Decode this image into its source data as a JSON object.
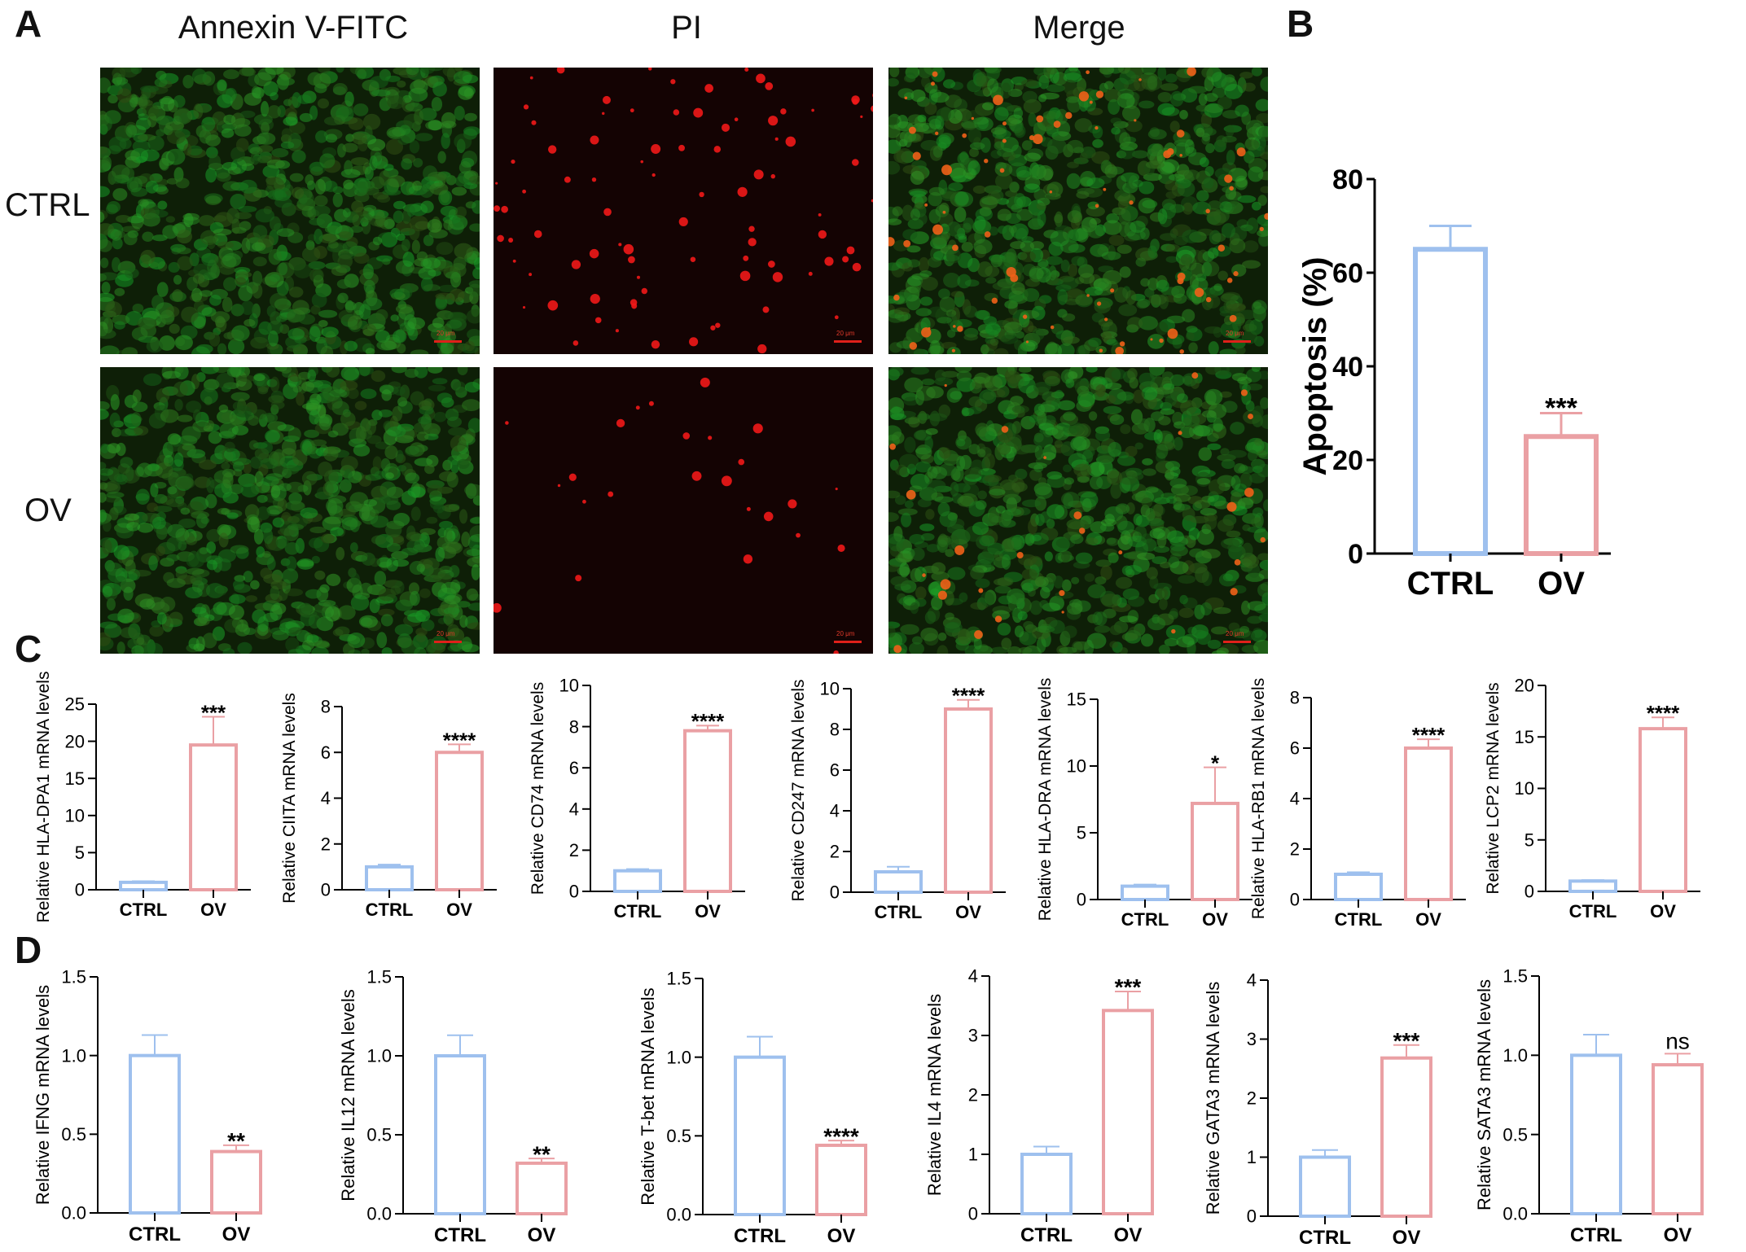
{
  "panels": {
    "A": "A",
    "B": "B",
    "C": "C",
    "D": "D"
  },
  "micrographs": {
    "columns": [
      "Annexin V-FITC",
      "PI",
      "Merge"
    ],
    "rows": [
      "CTRL",
      "OV"
    ],
    "scale_label": "20 μm",
    "colors": {
      "green_stain": "#3a7a1c",
      "red_stain": "#e81818",
      "background": "#0b1a06"
    }
  },
  "chart_data": [
    {
      "id": "B",
      "type": "bar",
      "categories": [
        "CTRL",
        "OV"
      ],
      "values": [
        65,
        25
      ],
      "errors": [
        5,
        5
      ],
      "ylim": [
        0,
        80
      ],
      "yticks": [
        0,
        20,
        40,
        60,
        80
      ],
      "ylabel": "Apoptosis (%)",
      "xlabel": "",
      "significance": "***",
      "colors": [
        "#9ec0ee",
        "#eaa0a4"
      ]
    },
    {
      "id": "C1",
      "type": "bar",
      "categories": [
        "CTRL",
        "OV"
      ],
      "values": [
        1.0,
        19.5
      ],
      "errors": [
        0.15,
        3.8
      ],
      "ylim": [
        0,
        25
      ],
      "yticks": [
        0,
        5,
        10,
        15,
        20,
        25
      ],
      "ylabel": "Relative HLA-DPA1 mRNA levels",
      "significance": "***",
      "colors": [
        "#9ec0ee",
        "#eaa0a4"
      ]
    },
    {
      "id": "C2",
      "type": "bar",
      "categories": [
        "CTRL",
        "OV"
      ],
      "values": [
        1.0,
        6.0
      ],
      "errors": [
        0.1,
        0.35
      ],
      "ylim": [
        0,
        8
      ],
      "yticks": [
        0,
        2,
        4,
        6,
        8
      ],
      "ylabel": "Relative CIITA mRNA levels",
      "significance": "****",
      "colors": [
        "#9ec0ee",
        "#eaa0a4"
      ]
    },
    {
      "id": "C3",
      "type": "bar",
      "categories": [
        "CTRL",
        "OV"
      ],
      "values": [
        1.0,
        7.8
      ],
      "errors": [
        0.08,
        0.25
      ],
      "ylim": [
        0,
        10
      ],
      "yticks": [
        0,
        2,
        4,
        6,
        8,
        10
      ],
      "ylabel": "Relative CD74 mRNA levels",
      "significance": "****",
      "colors": [
        "#9ec0ee",
        "#eaa0a4"
      ]
    },
    {
      "id": "C4",
      "type": "bar",
      "categories": [
        "CTRL",
        "OV"
      ],
      "values": [
        1.0,
        9.0
      ],
      "errors": [
        0.25,
        0.45
      ],
      "ylim": [
        0,
        10
      ],
      "yticks": [
        0,
        2,
        4,
        6,
        8,
        10
      ],
      "ylabel": "Relative CD247 mRNA levels",
      "significance": "****",
      "colors": [
        "#9ec0ee",
        "#eaa0a4"
      ]
    },
    {
      "id": "C5",
      "type": "bar",
      "categories": [
        "CTRL",
        "OV"
      ],
      "values": [
        1.0,
        7.2
      ],
      "errors": [
        0.12,
        2.7
      ],
      "ylim": [
        0,
        15
      ],
      "yticks": [
        0,
        5,
        10,
        15
      ],
      "ylabel": "Relative HLA-DRA mRNA levels",
      "significance": "*",
      "colors": [
        "#9ec0ee",
        "#eaa0a4"
      ]
    },
    {
      "id": "C6",
      "type": "bar",
      "categories": [
        "CTRL",
        "OV"
      ],
      "values": [
        1.0,
        6.0
      ],
      "errors": [
        0.08,
        0.35
      ],
      "ylim": [
        0,
        8
      ],
      "yticks": [
        0,
        2,
        4,
        6,
        8
      ],
      "ylabel": "Relative HLA-RB1 mRNA levels",
      "significance": "****",
      "colors": [
        "#9ec0ee",
        "#eaa0a4"
      ]
    },
    {
      "id": "C7",
      "type": "bar",
      "categories": [
        "CTRL",
        "OV"
      ],
      "values": [
        1.0,
        15.8
      ],
      "errors": [
        0.1,
        1.1
      ],
      "ylim": [
        0,
        20
      ],
      "yticks": [
        0,
        5,
        10,
        15,
        20
      ],
      "ylabel": "Relative LCP2 mRNA levels",
      "significance": "****",
      "colors": [
        "#9ec0ee",
        "#eaa0a4"
      ]
    },
    {
      "id": "D1",
      "type": "bar",
      "categories": [
        "CTRL",
        "OV"
      ],
      "values": [
        1.0,
        0.39
      ],
      "errors": [
        0.13,
        0.04
      ],
      "ylim": [
        0,
        1.5
      ],
      "yticks": [
        0.0,
        0.5,
        1.0,
        1.5
      ],
      "ylabel": "Relative IFNG mRNA levels",
      "significance": "**",
      "colors": [
        "#9ec0ee",
        "#eaa0a4"
      ]
    },
    {
      "id": "D2",
      "type": "bar",
      "categories": [
        "CTRL",
        "OV"
      ],
      "values": [
        1.0,
        0.32
      ],
      "errors": [
        0.13,
        0.03
      ],
      "ylim": [
        0,
        1.5
      ],
      "yticks": [
        0.0,
        0.5,
        1.0,
        1.5
      ],
      "ylabel": "Relative IL12 mRNA levels",
      "significance": "**",
      "colors": [
        "#9ec0ee",
        "#eaa0a4"
      ]
    },
    {
      "id": "D3",
      "type": "bar",
      "categories": [
        "CTRL",
        "OV"
      ],
      "values": [
        1.0,
        0.44
      ],
      "errors": [
        0.13,
        0.03
      ],
      "ylim": [
        0,
        1.5
      ],
      "yticks": [
        0.0,
        0.5,
        1.0,
        1.5
      ],
      "ylabel": "Relative T-bet mRNA levels",
      "significance": "****",
      "colors": [
        "#9ec0ee",
        "#eaa0a4"
      ]
    },
    {
      "id": "D4",
      "type": "bar",
      "categories": [
        "CTRL",
        "OV"
      ],
      "values": [
        1.0,
        3.42
      ],
      "errors": [
        0.13,
        0.32
      ],
      "ylim": [
        0,
        4
      ],
      "yticks": [
        0,
        1,
        2,
        3,
        4
      ],
      "ylabel": "Relative IL4 mRNA levels",
      "significance": "***",
      "colors": [
        "#9ec0ee",
        "#eaa0a4"
      ]
    },
    {
      "id": "D5",
      "type": "bar",
      "categories": [
        "CTRL",
        "OV"
      ],
      "values": [
        1.0,
        2.68
      ],
      "errors": [
        0.12,
        0.22
      ],
      "ylim": [
        0,
        4
      ],
      "yticks": [
        0,
        1,
        2,
        3,
        4
      ],
      "ylabel": "Relative GATA3 mRNA levels",
      "significance": "***",
      "colors": [
        "#9ec0ee",
        "#eaa0a4"
      ]
    },
    {
      "id": "D6",
      "type": "bar",
      "categories": [
        "CTRL",
        "OV"
      ],
      "values": [
        1.0,
        0.94
      ],
      "errors": [
        0.13,
        0.07
      ],
      "ylim": [
        0,
        1.5
      ],
      "yticks": [
        0.0,
        0.5,
        1.0,
        1.5
      ],
      "ylabel": "Relative SATA3 mRNA levels",
      "significance": "ns",
      "colors": [
        "#9ec0ee",
        "#eaa0a4"
      ]
    }
  ]
}
